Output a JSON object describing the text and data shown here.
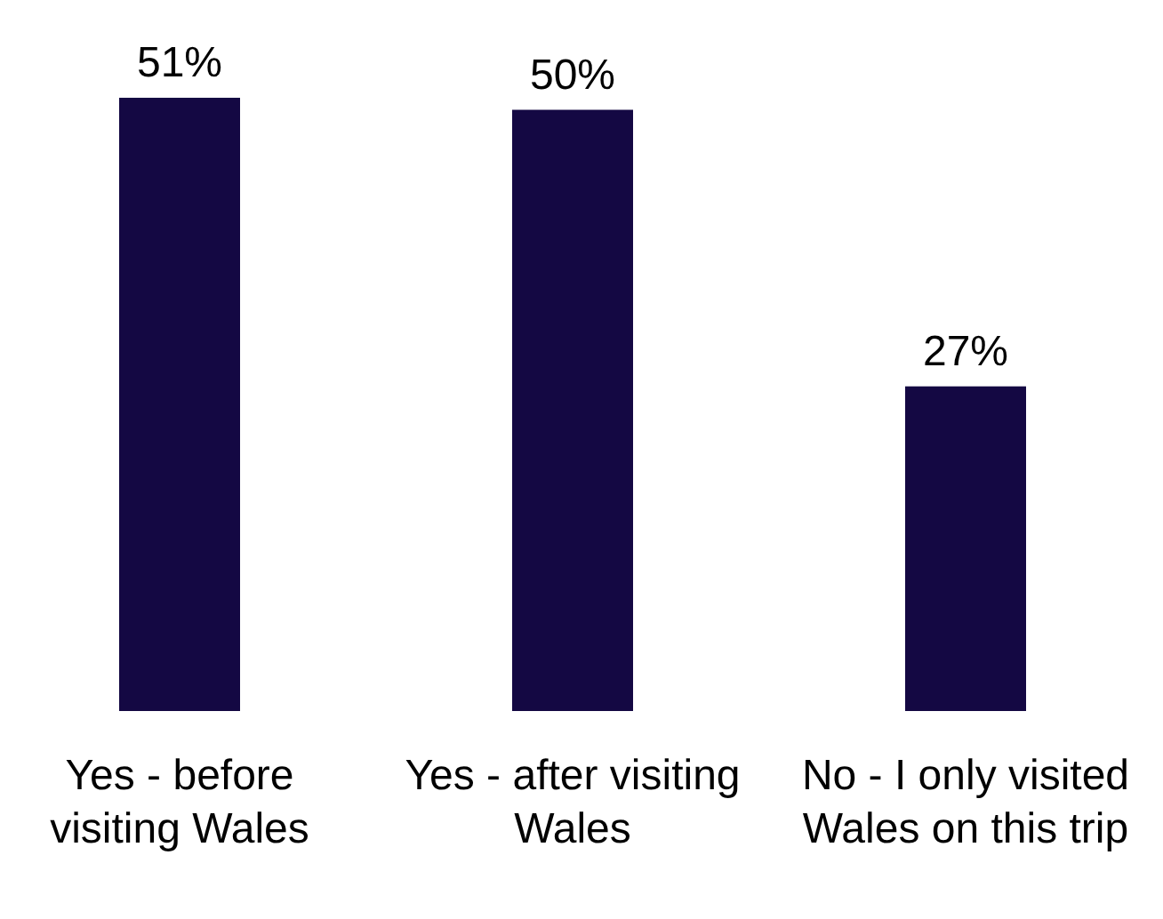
{
  "chart_data": {
    "type": "bar",
    "categories": [
      "Yes - before visiting Wales",
      "Yes - after visiting Wales",
      "No - I only visited Wales on this trip"
    ],
    "values": [
      51,
      50,
      27
    ],
    "color": "#140843",
    "value_labels": [
      "51%",
      "50%",
      "27%"
    ]
  }
}
